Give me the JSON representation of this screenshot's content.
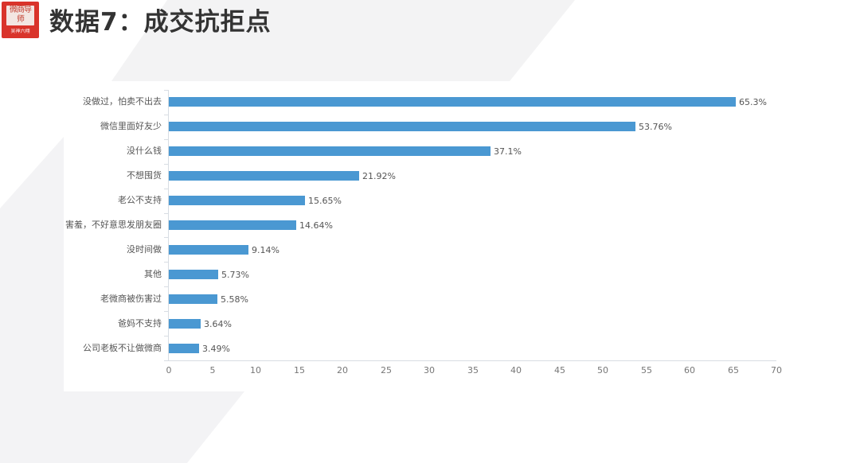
{
  "header": {
    "title": "数据7：成交抗拒点",
    "logo": {
      "top_text": "微商导师",
      "bottom_text": "吴神六翔"
    }
  },
  "colors": {
    "bar": "#4a98d2",
    "title": "#333333",
    "logo_bg": "#d9342b",
    "bg_shape": "#f2f2f4"
  },
  "chart_data": {
    "type": "bar",
    "orientation": "horizontal",
    "title": "数据7：成交抗拒点",
    "xlabel": "",
    "ylabel": "",
    "xlim": [
      0,
      70
    ],
    "x_ticks": [
      0,
      5,
      10,
      15,
      20,
      25,
      30,
      35,
      40,
      45,
      50,
      55,
      60,
      65,
      70
    ],
    "grid": false,
    "legend": null,
    "categories": [
      "没做过，怕卖不出去",
      "微信里面好友少",
      "没什么钱",
      "不想囤货",
      "老公不支持",
      "害羞，不好意思发朋友圈",
      "没时间做",
      "其他",
      "老微商被伤害过",
      "爸妈不支持",
      "公司老板不让做微商"
    ],
    "values": [
      65.3,
      53.76,
      37.1,
      21.92,
      15.65,
      14.64,
      9.14,
      5.73,
      5.58,
      3.64,
      3.49
    ],
    "value_labels": [
      "65.3%",
      "53.76%",
      "37.1%",
      "21.92%",
      "15.65%",
      "14.64%",
      "9.14%",
      "5.73%",
      "5.58%",
      "3.64%",
      "3.49%"
    ]
  }
}
